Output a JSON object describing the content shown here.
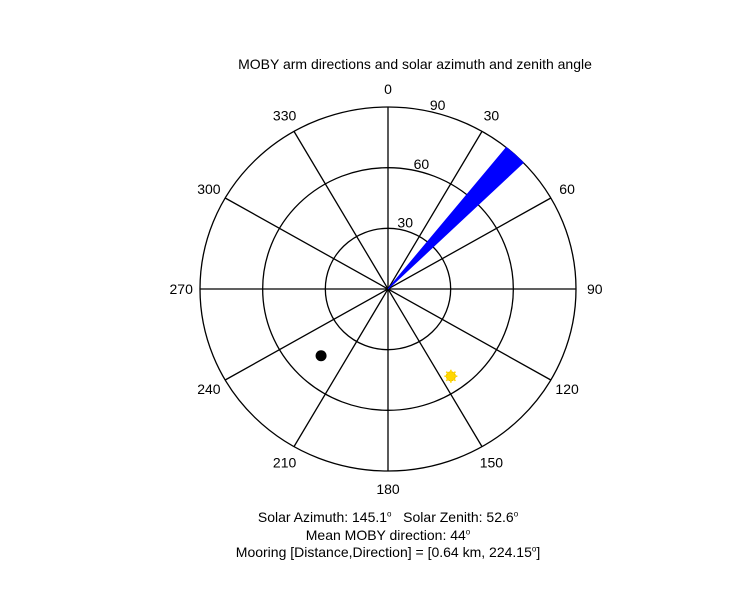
{
  "chart_data": {
    "type": "polar",
    "title": "MOBY arm directions and solar azimuth and zenith angle",
    "radial_range": [
      0,
      90
    ],
    "radial_ticks": [
      {
        "value": 30,
        "label": "30"
      },
      {
        "value": 60,
        "label": "60"
      },
      {
        "value": 90,
        "label": "90"
      }
    ],
    "angle_ticks": [
      {
        "angle": 0,
        "label": "0"
      },
      {
        "angle": 30,
        "label": "30"
      },
      {
        "angle": 60,
        "label": "60"
      },
      {
        "angle": 90,
        "label": "90"
      },
      {
        "angle": 120,
        "label": "120"
      },
      {
        "angle": 150,
        "label": "150"
      },
      {
        "angle": 180,
        "label": "180"
      },
      {
        "angle": 210,
        "label": "210"
      },
      {
        "angle": 240,
        "label": "240"
      },
      {
        "angle": 270,
        "label": "270"
      },
      {
        "angle": 300,
        "label": "300"
      },
      {
        "angle": 330,
        "label": "330"
      }
    ],
    "moby_arm_wedge": {
      "direction": 44,
      "angle_start": 39,
      "angle_end": 46,
      "radius": 90,
      "color": "#0000ff"
    },
    "sun_marker": {
      "azimuth": 145.1,
      "zenith": 52.6,
      "color": "#ffd700"
    },
    "mooring_marker": {
      "direction": 224.15,
      "radius": 46,
      "color": "#000000"
    },
    "grid": true
  },
  "info": {
    "solar_label": "Solar Azimuth: 145.1",
    "zenith_label": "Solar Zenith: 52.6",
    "degree_mark": "o",
    "moby_label": "Mean MOBY direction: 44",
    "mooring_prefix": "Mooring [Distance,Direction] = [0.64 km, 224.15",
    "mooring_suffix": "]"
  }
}
